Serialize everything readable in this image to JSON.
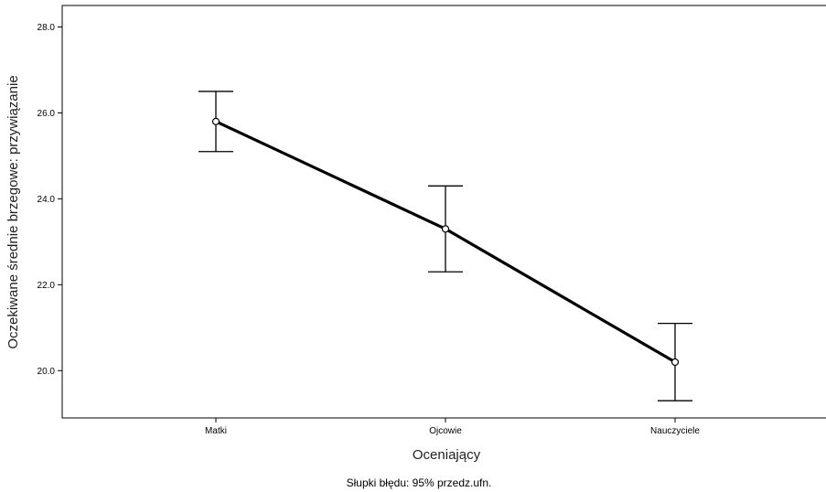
{
  "chart_data": {
    "type": "line",
    "categories": [
      "Matki",
      "Ojcowie",
      "Nauczyciele"
    ],
    "series": [
      {
        "values": [
          25.8,
          23.3,
          20.2
        ],
        "ci_lower": [
          25.1,
          22.3,
          19.3
        ],
        "ci_upper": [
          26.5,
          24.3,
          21.1
        ]
      }
    ],
    "xlabel": "Oceniający",
    "ylabel": "Oczekiwane średnie brzegowe: przywiązanie",
    "yticks": [
      20.0,
      22.0,
      24.0,
      26.0,
      28.0
    ],
    "ytick_labels": [
      "20.0",
      "22.0",
      "24.0",
      "26.0",
      "28.0"
    ],
    "ylim": [
      18.9,
      28.5
    ],
    "footnote": "Słupki błędu: 95% przedz.ufn.",
    "grid": false,
    "colors": {
      "line": "#000000",
      "axis": "#000000",
      "errorbar": "#000000"
    }
  }
}
